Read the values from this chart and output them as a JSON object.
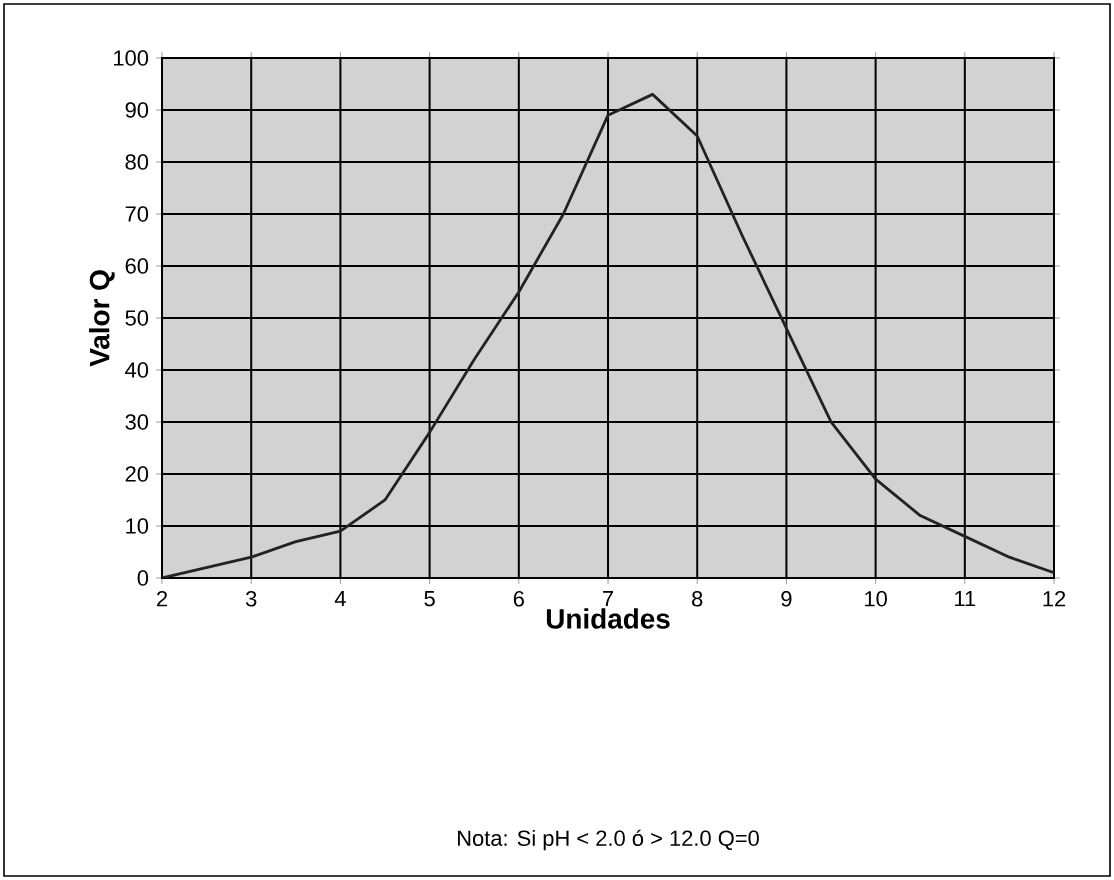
{
  "chart_data": {
    "type": "line",
    "xlabel": "Unidades",
    "ylabel": "Valor Q",
    "annotations": [
      "Nota: Si pH < 2.0 ó > 12.0   Q=0"
    ],
    "x": [
      2,
      2.5,
      3,
      3.5,
      4,
      4.5,
      5,
      5.5,
      6,
      6.5,
      7,
      7.5,
      8,
      8.5,
      9,
      9.5,
      10,
      10.5,
      11,
      11.5,
      12
    ],
    "series": [
      {
        "color": "#222222",
        "values": [
          0,
          2,
          4,
          7,
          9,
          15,
          28,
          42,
          55,
          70,
          89,
          93,
          85,
          66,
          48,
          30,
          19,
          12,
          8,
          4,
          1
        ]
      }
    ],
    "xlim": [
      2,
      12
    ],
    "ylim": [
      0,
      100
    ],
    "xticks": [
      2,
      3,
      4,
      5,
      6,
      7,
      8,
      9,
      10,
      11,
      12
    ],
    "yticks": [
      0,
      10,
      20,
      30,
      40,
      50,
      60,
      70,
      80,
      90,
      100
    ],
    "grid": true,
    "marker": "none",
    "line_style": "solid"
  }
}
